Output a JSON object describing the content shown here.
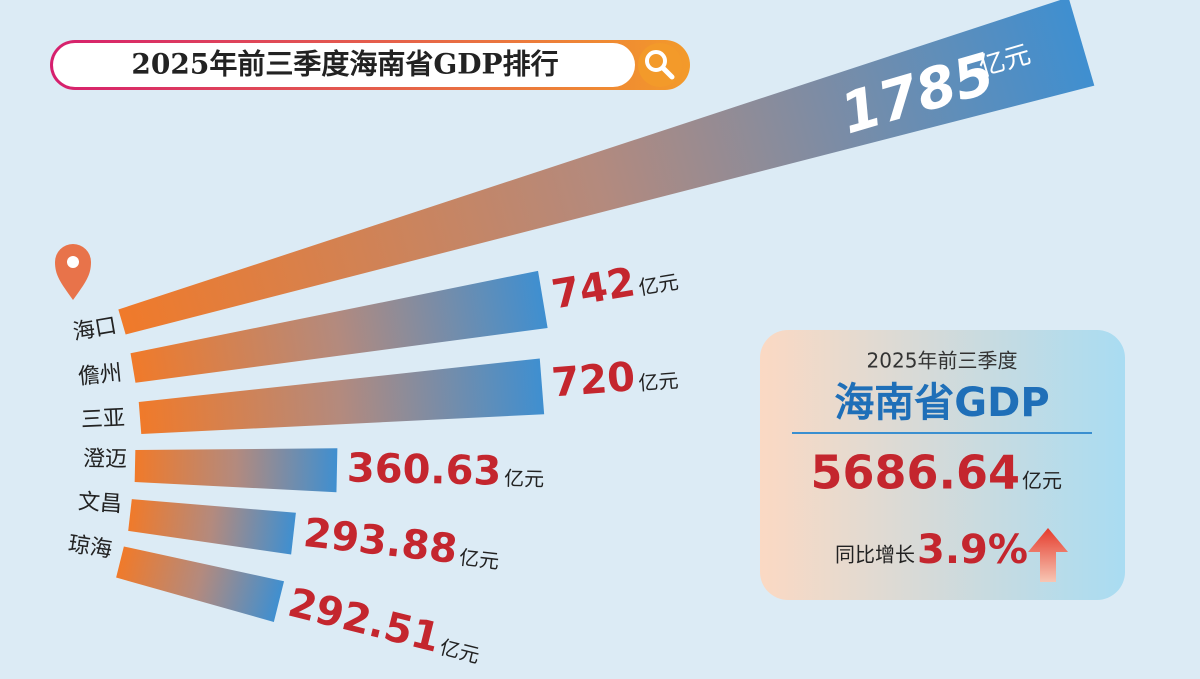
{
  "chart_data": {
    "type": "bar",
    "title": "2025年前三季度海南省GDP排行",
    "categories": [
      "海口",
      "儋州",
      "三亚",
      "澄迈",
      "文昌",
      "琼海"
    ],
    "values": [
      1785,
      742,
      720,
      360.63,
      293.88,
      292.51
    ],
    "unit": "亿元",
    "colors": [
      "#f07a2a",
      "#3f8fd0"
    ],
    "summary": {
      "period": "2025年前三季度",
      "title": "海南省GDP",
      "total": 5686.64,
      "unit": "亿元",
      "growth_text": "同比增长",
      "growth": "3.9%"
    }
  }
}
